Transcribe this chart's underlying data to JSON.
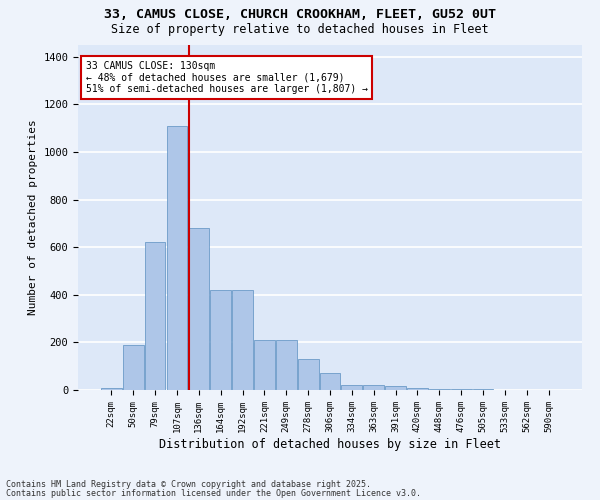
{
  "title_line1": "33, CAMUS CLOSE, CHURCH CROOKHAM, FLEET, GU52 0UT",
  "title_line2": "Size of property relative to detached houses in Fleet",
  "xlabel": "Distribution of detached houses by size in Fleet",
  "ylabel": "Number of detached properties",
  "categories": [
    "22sqm",
    "50sqm",
    "79sqm",
    "107sqm",
    "136sqm",
    "164sqm",
    "192sqm",
    "221sqm",
    "249sqm",
    "278sqm",
    "306sqm",
    "334sqm",
    "363sqm",
    "391sqm",
    "420sqm",
    "448sqm",
    "476sqm",
    "505sqm",
    "533sqm",
    "562sqm",
    "590sqm"
  ],
  "values": [
    10,
    190,
    620,
    1110,
    680,
    420,
    420,
    210,
    210,
    130,
    70,
    20,
    20,
    15,
    10,
    5,
    5,
    3,
    2,
    1,
    1
  ],
  "bar_color": "#aec6e8",
  "bar_edge_color": "#5a8fc0",
  "background_color": "#dde8f8",
  "grid_color": "#ffffff",
  "fig_bg_color": "#eef3fb",
  "ylim": [
    0,
    1450
  ],
  "yticks": [
    0,
    200,
    400,
    600,
    800,
    1000,
    1200,
    1400
  ],
  "red_line_index": 3.55,
  "annotation_text": "33 CAMUS CLOSE: 130sqm\n← 48% of detached houses are smaller (1,679)\n51% of semi-detached houses are larger (1,807) →",
  "annotation_box_color": "#ffffff",
  "annotation_box_edge": "#cc0000",
  "footnote_line1": "Contains HM Land Registry data © Crown copyright and database right 2025.",
  "footnote_line2": "Contains public sector information licensed under the Open Government Licence v3.0."
}
